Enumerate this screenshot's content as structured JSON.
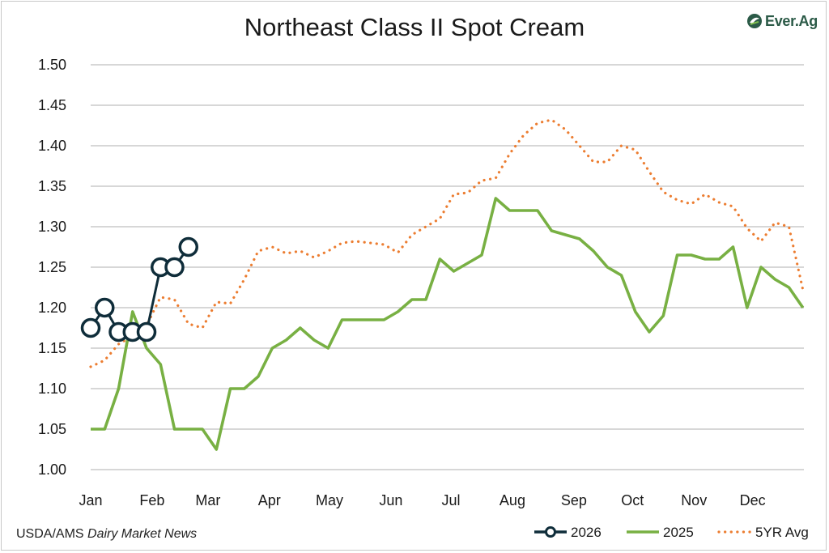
{
  "title": "Northeast Class II Spot Cream",
  "logo": {
    "text": "Ever.Ag",
    "icon": "ever-ag-leaf-icon"
  },
  "source": {
    "prefix": "USDA/AMS ",
    "italic": "Dairy Market News"
  },
  "chart_data": {
    "type": "line",
    "title": "Northeast Class II Spot Cream",
    "xlabel": "",
    "ylabel": "",
    "ylim": [
      1.0,
      1.5
    ],
    "y_ticks": [
      1.0,
      1.05,
      1.1,
      1.15,
      1.2,
      1.25,
      1.3,
      1.35,
      1.4,
      1.45,
      1.5
    ],
    "y_tick_labels": [
      "1.00",
      "1.05",
      "1.10",
      "1.15",
      "1.20",
      "1.25",
      "1.30",
      "1.35",
      "1.40",
      "1.45",
      "1.50"
    ],
    "x_ticks": [
      "Jan",
      "Feb",
      "Mar",
      "Apr",
      "May",
      "Jun",
      "Jul",
      "Aug",
      "Sep",
      "Oct",
      "Nov",
      "Dec"
    ],
    "x_unit": "week of year",
    "x_range": [
      1,
      52
    ],
    "grid": "horizontal",
    "legend_position": "bottom-right",
    "series": [
      {
        "name": "2026",
        "color": "#0f2d3a",
        "style": "solid-markers",
        "x": [
          1,
          2,
          3,
          4,
          5,
          6,
          7,
          8
        ],
        "y": [
          1.175,
          1.2,
          1.17,
          1.17,
          1.17,
          1.25,
          1.25,
          1.275
        ]
      },
      {
        "name": "2025",
        "color": "#78b043",
        "style": "solid",
        "x": [
          1,
          2,
          3,
          4,
          5,
          6,
          7,
          8,
          9,
          10,
          11,
          12,
          13,
          14,
          15,
          16,
          17,
          18,
          19,
          20,
          21,
          22,
          23,
          24,
          25,
          26,
          27,
          28,
          29,
          30,
          31,
          32,
          33,
          34,
          35,
          36,
          37,
          38,
          39,
          40,
          41,
          42,
          43,
          44,
          45,
          46,
          47,
          48,
          49,
          50,
          51,
          52
        ],
        "y": [
          1.05,
          1.05,
          1.1,
          1.195,
          1.15,
          1.13,
          1.05,
          1.05,
          1.05,
          1.025,
          1.1,
          1.1,
          1.115,
          1.15,
          1.16,
          1.175,
          1.16,
          1.15,
          1.185,
          1.185,
          1.185,
          1.185,
          1.195,
          1.21,
          1.21,
          1.26,
          1.245,
          1.255,
          1.265,
          1.335,
          1.32,
          1.32,
          1.32,
          1.295,
          1.29,
          1.285,
          1.27,
          1.25,
          1.24,
          1.195,
          1.17,
          1.19,
          1.265,
          1.265,
          1.26,
          1.26,
          1.275,
          1.2,
          1.25,
          1.235,
          1.225,
          1.2
        ]
      },
      {
        "name": "5YR Avg",
        "color": "#ec7d31",
        "style": "dotted",
        "x": [
          1,
          2,
          3,
          4,
          5,
          6,
          7,
          8,
          9,
          10,
          11,
          12,
          13,
          14,
          15,
          16,
          17,
          18,
          19,
          20,
          21,
          22,
          23,
          24,
          25,
          26,
          27,
          28,
          29,
          30,
          31,
          32,
          33,
          34,
          35,
          36,
          37,
          38,
          39,
          40,
          41,
          42,
          43,
          44,
          45,
          46,
          47,
          48,
          49,
          50,
          51,
          52
        ],
        "y": [
          1.127,
          1.135,
          1.155,
          1.165,
          1.178,
          1.213,
          1.21,
          1.18,
          1.175,
          1.207,
          1.205,
          1.235,
          1.27,
          1.275,
          1.267,
          1.27,
          1.262,
          1.27,
          1.28,
          1.282,
          1.28,
          1.278,
          1.268,
          1.29,
          1.3,
          1.31,
          1.34,
          1.342,
          1.357,
          1.36,
          1.39,
          1.413,
          1.428,
          1.432,
          1.42,
          1.4,
          1.38,
          1.38,
          1.4,
          1.395,
          1.368,
          1.343,
          1.333,
          1.328,
          1.34,
          1.33,
          1.325,
          1.298,
          1.282,
          1.305,
          1.3,
          1.222
        ]
      }
    ]
  }
}
